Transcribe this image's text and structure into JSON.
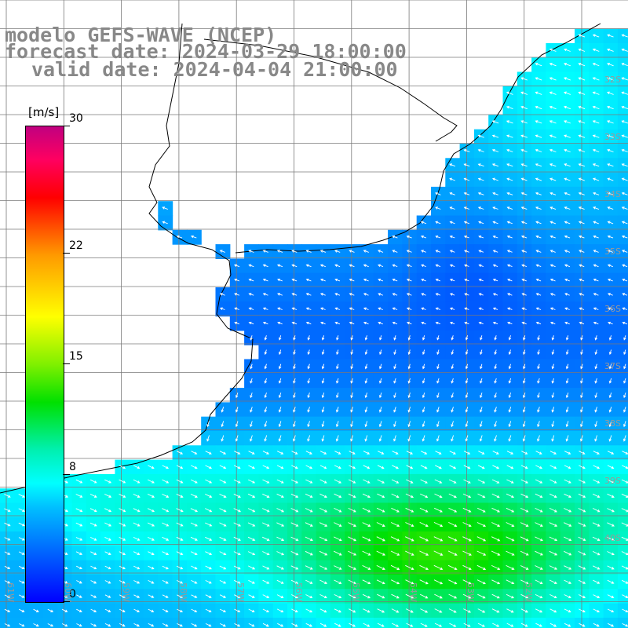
{
  "title": {
    "line1": "modelo GEFS-WAVE (NCEP)",
    "line2": "forecast date: 2024-03-29 18:00:00",
    "line3": "valid date: 2024-04-04 21:00:00"
  },
  "colorbar": {
    "units": "[m/s]",
    "ticks": [
      {
        "label": "30",
        "value": 30
      },
      {
        "label": "22",
        "value": 22
      },
      {
        "label": "15",
        "value": 15
      },
      {
        "label": "8",
        "value": 8
      },
      {
        "label": "0",
        "value": 0
      }
    ],
    "min": 0,
    "max": 30
  },
  "map": {
    "parameter": "wind speed and direction",
    "lat_range": [
      -41.5,
      -29.5
    ],
    "lon_range": [
      -62.5,
      -51.0
    ],
    "land_color": "#ffffff",
    "coastline_color": "#000000",
    "grid_color": "#7a7a7a",
    "lat_labels": [
      "32S",
      "33S",
      "34S",
      "35S",
      "36S",
      "37S",
      "38S",
      "39S",
      "40S"
    ],
    "lon_labels": [
      "61W",
      "60W",
      "59W",
      "58W",
      "57W",
      "56W",
      "55W",
      "54W",
      "53W",
      "52W"
    ]
  }
}
